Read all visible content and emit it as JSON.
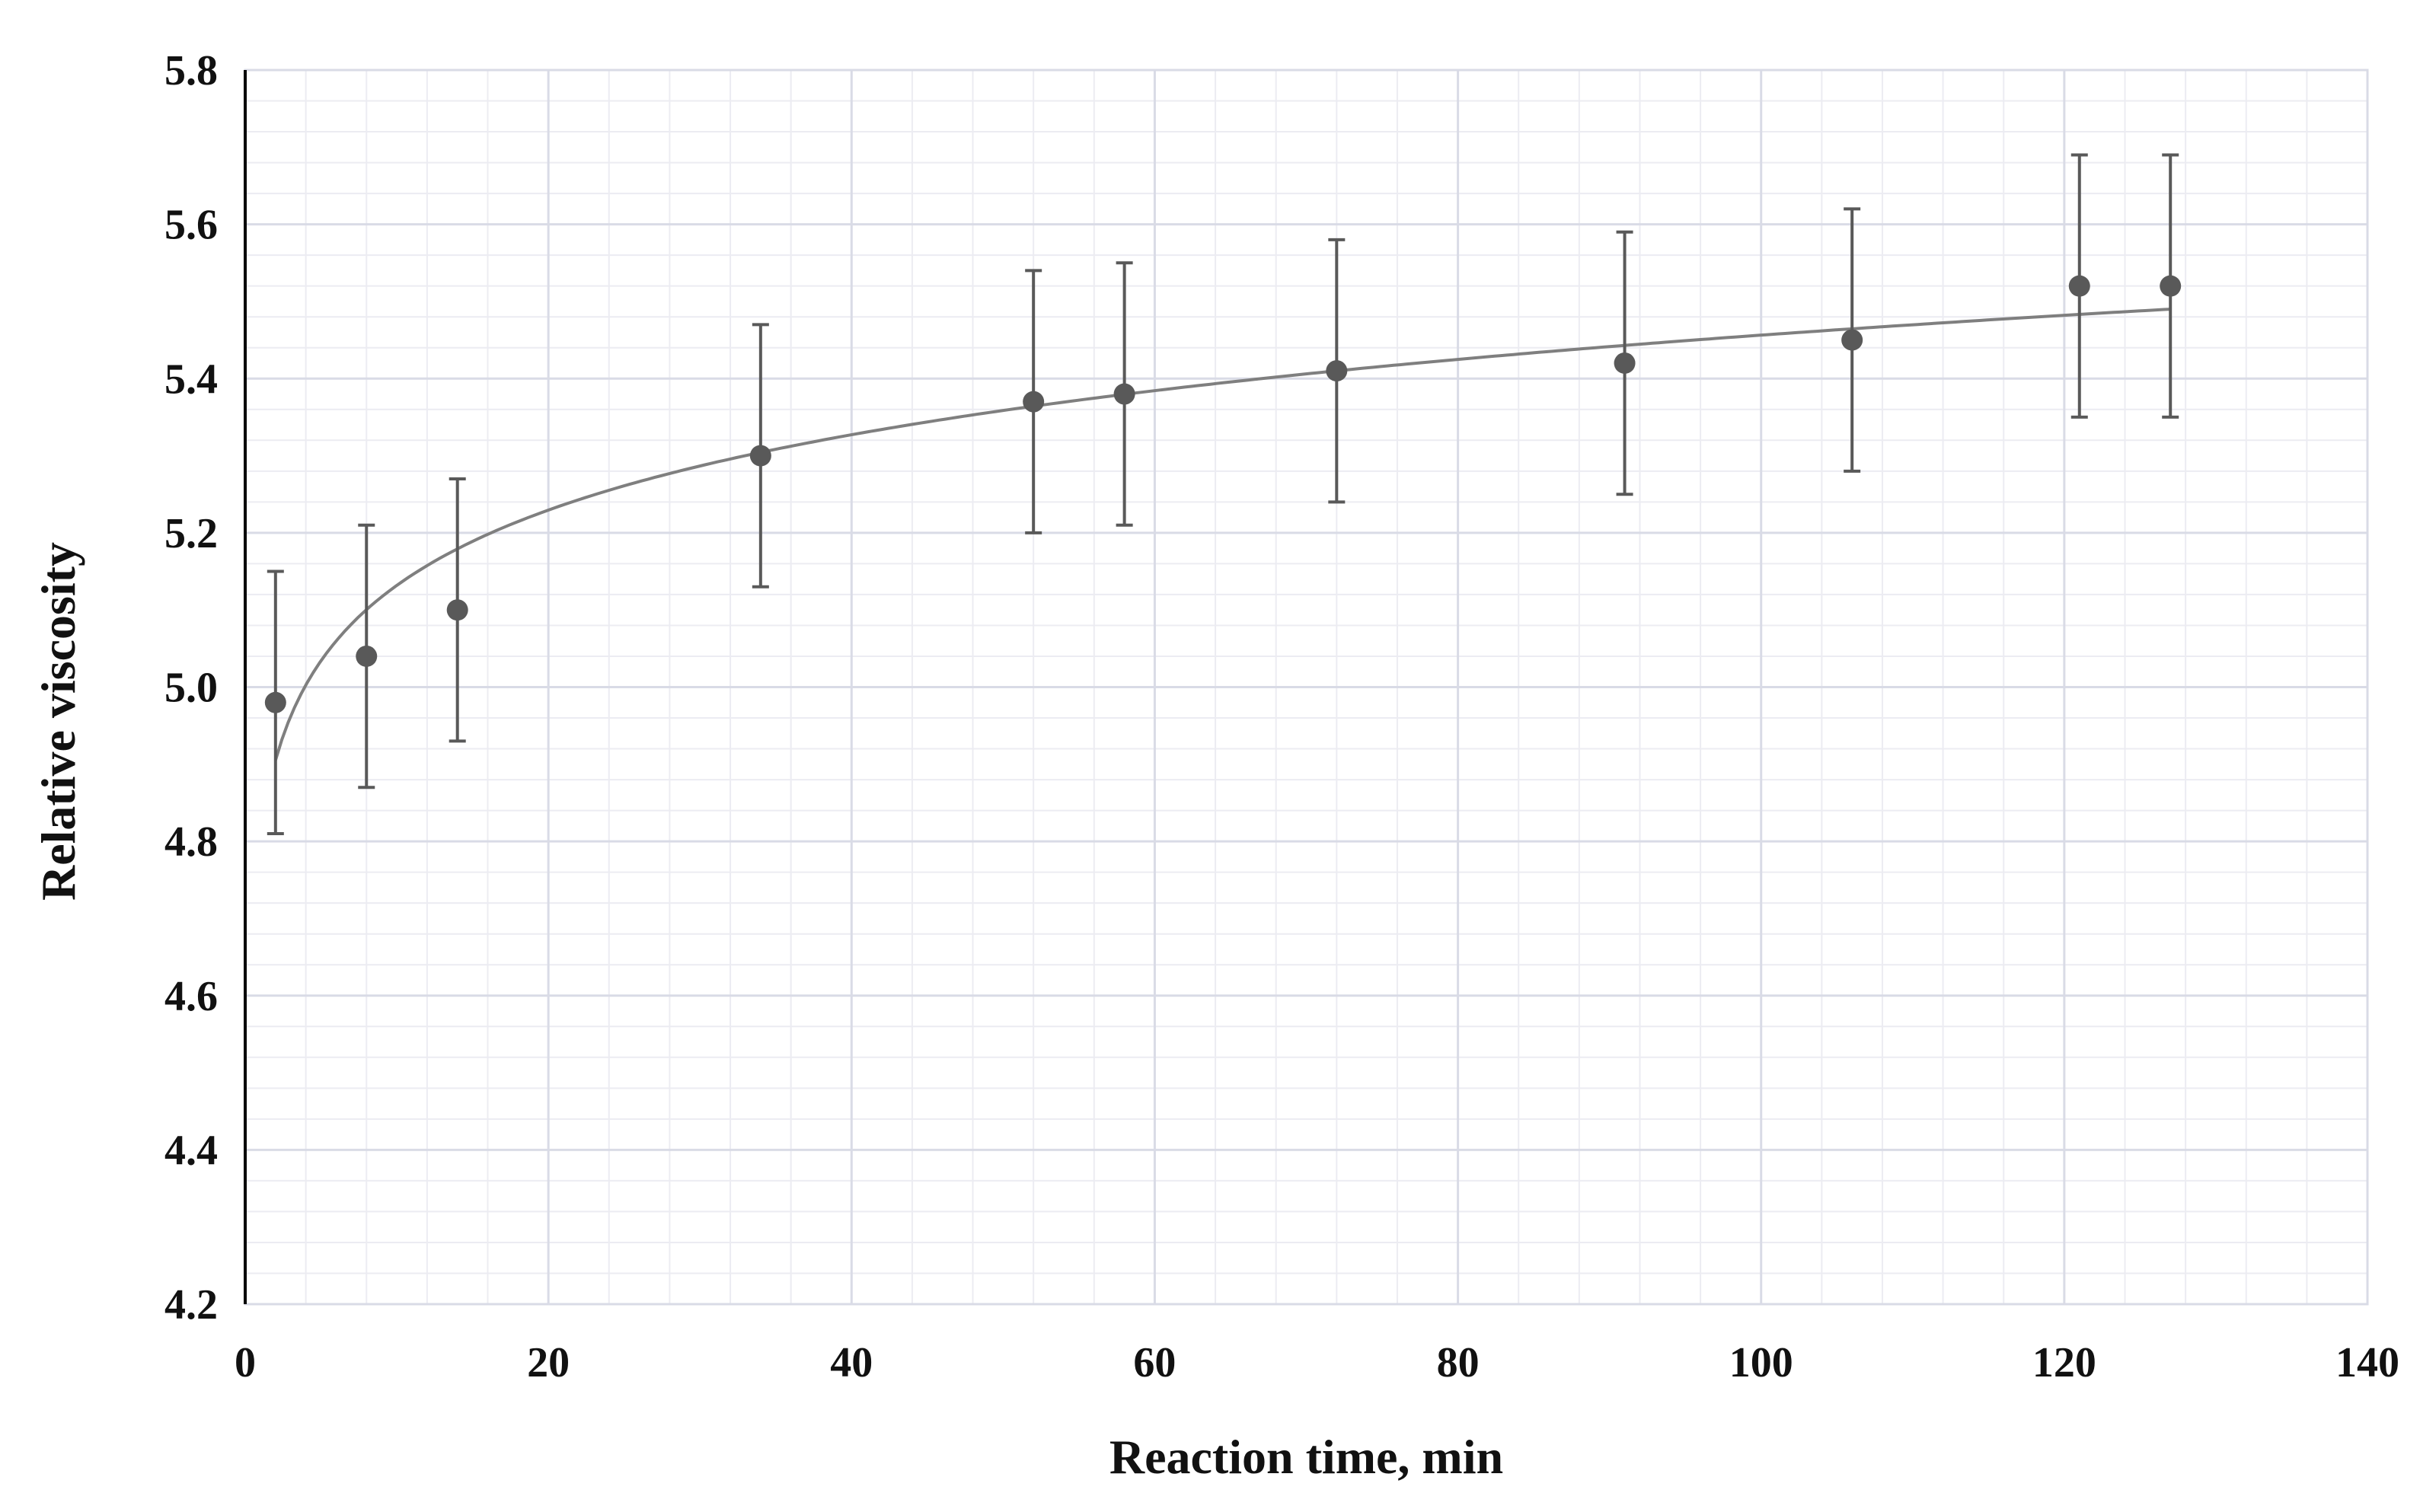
{
  "chart_data": {
    "type": "scatter",
    "title": "",
    "xlabel": "Reaction time, min",
    "ylabel": "Relative viscosity",
    "xlim": [
      0,
      140
    ],
    "ylim": [
      4.2,
      5.8
    ],
    "xticks": [
      "0",
      "20",
      "40",
      "60",
      "80",
      "100",
      "120",
      "140"
    ],
    "yticks": [
      "4.2",
      "4.4",
      "4.6",
      "4.8",
      "5.0",
      "5.2",
      "5.4",
      "5.6",
      "5.8"
    ],
    "grid": true,
    "legend": "none",
    "series": [
      {
        "x": [
          2,
          8,
          14,
          34,
          52,
          58,
          72,
          91,
          106,
          121,
          127
        ],
        "y": [
          4.98,
          5.04,
          5.1,
          5.3,
          5.37,
          5.38,
          5.41,
          5.42,
          5.45,
          5.52,
          5.52
        ],
        "error": [
          0.17,
          0.17,
          0.17,
          0.17,
          0.17,
          0.17,
          0.17,
          0.17,
          0.17,
          0.17,
          0.17
        ],
        "color": "#595959"
      }
    ],
    "trendline": {
      "type": "logarithmic",
      "x_range": [
        2,
        127
      ],
      "y_start": 4.905,
      "y_end": 5.49,
      "color": "#7f7f7f"
    },
    "colors": {
      "axis": "#000000",
      "major_grid": "#d9dbe6",
      "minor_grid": "#ececf2",
      "marker": "#595959",
      "text": "#111111"
    }
  }
}
